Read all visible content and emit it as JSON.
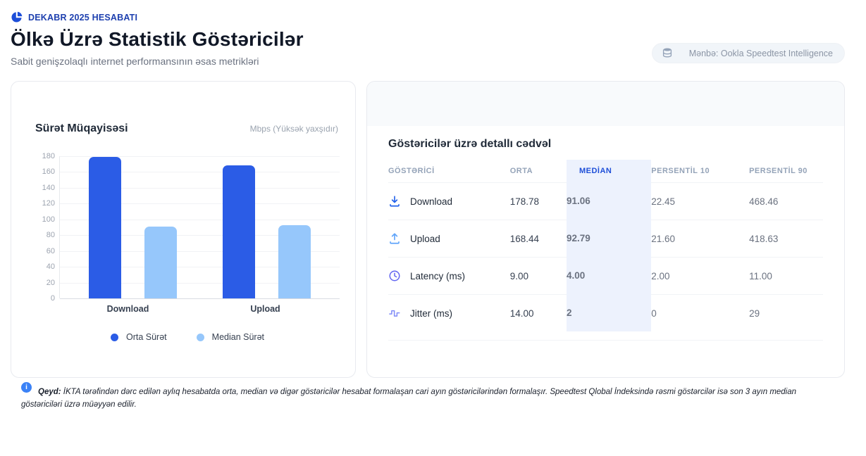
{
  "header": {
    "report_label": "DEKABR 2025 HESABATI",
    "title": "Ölkə Üzrə Statistik Göstəricilər",
    "subtitle": "Sabit genişzolaqlı internet performansının əsas metrikləri",
    "source_badge": "Mənbə: Ookla Speedtest Intelligence"
  },
  "chart_data": {
    "type": "bar",
    "title": "Sürət Müqayisəsi",
    "unit_label": "Mbps (Yüksək yaxşıdır)",
    "categories": [
      "Download",
      "Upload"
    ],
    "series": [
      {
        "name": "Orta Sürət",
        "color": "#2b5ce6",
        "values": [
          178.78,
          168.44
        ]
      },
      {
        "name": "Median Sürət",
        "color": "#96c7fb",
        "values": [
          91.06,
          92.79
        ]
      }
    ],
    "ylim": [
      0,
      180
    ],
    "yticks": [
      "180",
      "160",
      "140",
      "120",
      "100",
      "80",
      "60",
      "40",
      "20",
      "0"
    ],
    "grid": true,
    "legend_position": "bottom"
  },
  "table": {
    "title": "Göstəricilər üzrə detallı cədvəl",
    "columns": [
      "GÖSTƏRİCİ",
      "ORTA",
      "MEDİAN",
      "PERSENTİL 10",
      "PERSENTİL 90"
    ],
    "rows": [
      {
        "icon": "download-icon",
        "icon_color": "#2563eb",
        "label": "Download",
        "orta": "178.78",
        "median": "91.06",
        "p10": "22.45",
        "p90": "468.46"
      },
      {
        "icon": "upload-icon",
        "icon_color": "#60a5fa",
        "label": "Upload",
        "orta": "168.44",
        "median": "92.79",
        "p10": "21.60",
        "p90": "418.63"
      },
      {
        "icon": "clock-icon",
        "icon_color": "#6366f1",
        "label": "Latency (ms)",
        "orta": "9.00",
        "median": "4.00",
        "p10": "2.00",
        "p90": "11.00"
      },
      {
        "icon": "pulse-icon",
        "icon_color": "#818cf8",
        "label": "Jitter (ms)",
        "orta": "14.00",
        "median": "2",
        "p10": "0",
        "p90": "29"
      }
    ]
  },
  "note": {
    "label": "Qeyd:",
    "text": "İKTA tərəfindən dərc edilən aylıq hesabatda orta, median və digər göstəricilər hesabat formalaşan cari ayın göstəricilərindən formalaşır. Speedtest Qlobal İndeksində rəsmi göstərcilər isə son 3 ayın median göstəriciləri üzrə müəyyən edilir."
  },
  "colors": {
    "accent_blue": "#1d4ed8",
    "bar_orta": "#2b5ce6",
    "bar_median": "#96c7fb",
    "median_value_blue": "#1d4ed8",
    "median_value_indigo": "#4338ca",
    "median_column_bg": "#edf2fd",
    "badge_bg": "#f1f5f9"
  }
}
